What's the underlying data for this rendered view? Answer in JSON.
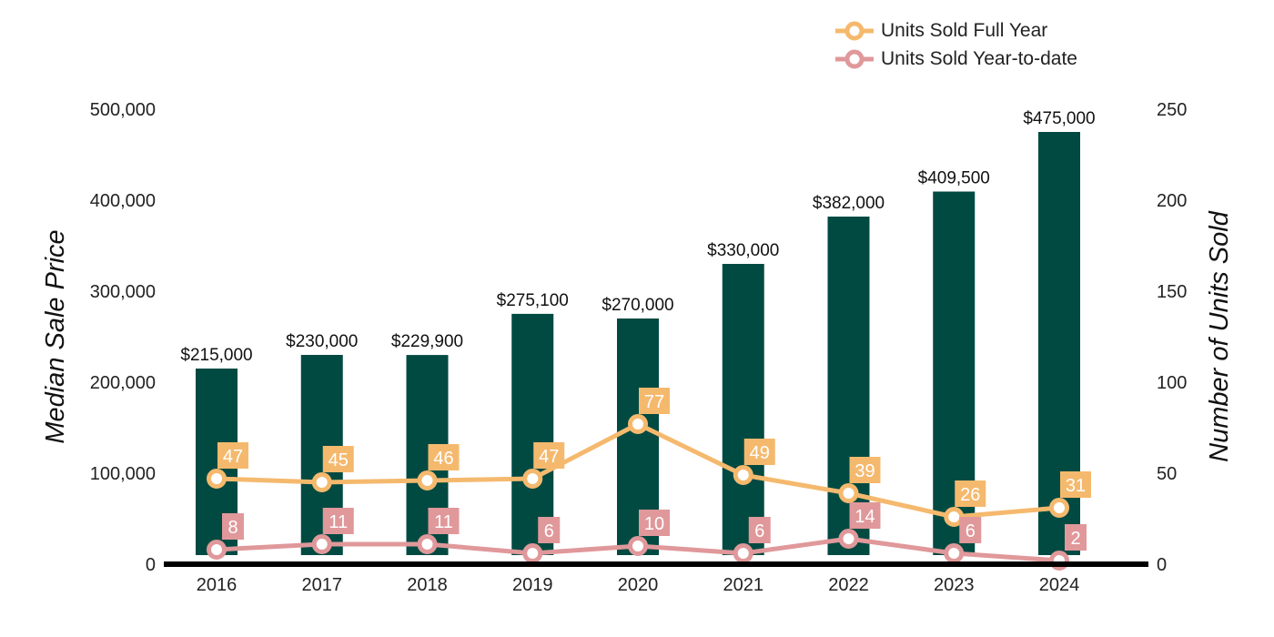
{
  "chart_data": {
    "type": "bar",
    "categories": [
      "2016",
      "2017",
      "2018",
      "2019",
      "2020",
      "2021",
      "2022",
      "2023",
      "2024"
    ],
    "bar_series": {
      "values": [
        215000,
        230000,
        229900,
        275100,
        270000,
        330000,
        382000,
        409500,
        475000
      ],
      "labels": [
        "$215,000",
        "$230,000",
        "$229,900",
        "$275,100",
        "$270,000",
        "$330,000",
        "$382,000",
        "$409,500",
        "$475,000"
      ],
      "color": "#004a42"
    },
    "line_series": [
      {
        "name": "Units Sold Full Year",
        "values": [
          47,
          45,
          46,
          47,
          77,
          49,
          39,
          26,
          31
        ],
        "color": "#f5b96e"
      },
      {
        "name": "Units Sold Year-to-date",
        "values": [
          8,
          11,
          11,
          6,
          10,
          6,
          14,
          6,
          2
        ],
        "color": "#e0989a"
      }
    ],
    "ylabel": "Median Sale Price",
    "y2label": "Number of Units Sold",
    "ylim": [
      0,
      500000
    ],
    "y2lim": [
      0,
      250
    ],
    "yticks": [
      "0",
      "100,000",
      "200,000",
      "300,000",
      "400,000",
      "500,000"
    ],
    "y2ticks": [
      "0",
      "50",
      "100",
      "150",
      "200",
      "250"
    ],
    "legend_position": "top-right",
    "grid": false
  }
}
